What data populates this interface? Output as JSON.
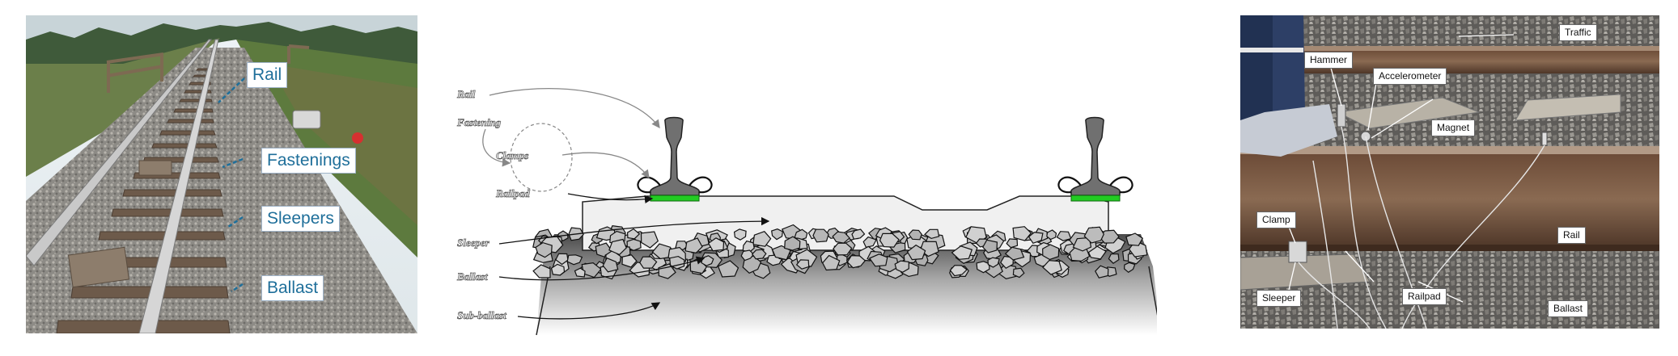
{
  "panel_left": {
    "labels": {
      "rail": "Rail",
      "fastenings": "Fastenings",
      "sleepers": "Sleepers",
      "ballast": "Ballast"
    },
    "label_color": "#1f6f9a"
  },
  "panel_middle": {
    "labels": {
      "rail": "Rail",
      "fastening": "Fastening",
      "clamps": "Clamps",
      "railpad": "Railpad",
      "sleeper": "Sleeper",
      "ballast": "Ballast",
      "subballast": "Sub-ballast"
    },
    "railpad_color": "#22cc22",
    "rail_color": "#6f6f6f",
    "sleeper_color": "#f0f0f0"
  },
  "panel_right": {
    "labels": {
      "traffic": "Traffic",
      "hammer": "Hammer",
      "accelerometer": "Accelerometer",
      "magnet": "Magnet",
      "clamp": "Clamp",
      "rail": "Rail",
      "sleeper": "Sleeper",
      "railpad": "Railpad",
      "ballast": "Ballast"
    }
  }
}
